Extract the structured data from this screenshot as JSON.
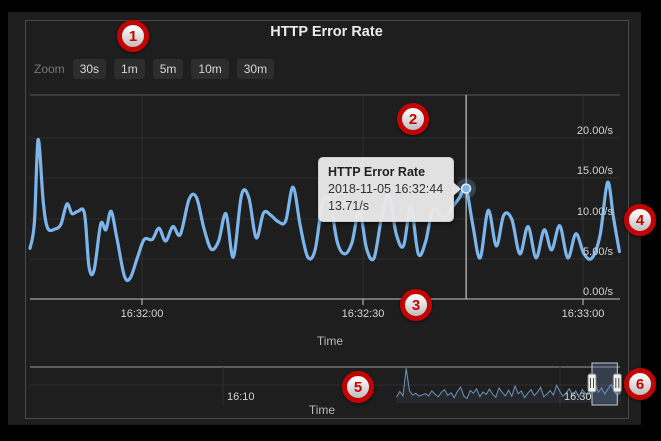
{
  "header": {
    "title": "HTTP Error Rate"
  },
  "zoom_bar": {
    "label": "Zoom",
    "buttons": [
      "30s",
      "1m",
      "5m",
      "10m",
      "30m"
    ]
  },
  "tooltip": {
    "title": "HTTP Error Rate",
    "timestamp": "2018-11-05 16:32:44",
    "value": "13.71/s"
  },
  "callouts": [
    "1",
    "2",
    "3",
    "4",
    "5",
    "6"
  ],
  "colors": {
    "series": "#7cb5ec",
    "navigator_series": "#6f93bd",
    "callout_ring": "#c40404",
    "tooltip_bg": "#e9e9e9",
    "panel_border": "#4a4a4a"
  },
  "chart_data": [
    {
      "type": "line",
      "title": "HTTP Error Rate",
      "xlabel": "Time",
      "ylabel": "",
      "x_tick_labels": [
        "16:32:00",
        "16:32:30",
        "16:33:00"
      ],
      "y_tick_labels": [
        "20.00/s",
        "15.00/s",
        "10.00/s",
        "5.00/s",
        "0.00/s"
      ],
      "ylim": [
        0,
        25
      ],
      "x_unit": "seconds after 16:32:00",
      "grid": true,
      "points": [
        [
          -15.2,
          6.3
        ],
        [
          -14.6,
          9.5
        ],
        [
          -14.1,
          19.8
        ],
        [
          -13.4,
          12.0
        ],
        [
          -12.8,
          8.8
        ],
        [
          -11.8,
          8.7
        ],
        [
          -11.0,
          9.3
        ],
        [
          -10.2,
          11.8
        ],
        [
          -9.5,
          10.6
        ],
        [
          -8.7,
          10.9
        ],
        [
          -7.8,
          10.6
        ],
        [
          -7.2,
          4.0
        ],
        [
          -6.5,
          3.6
        ],
        [
          -5.6,
          9.3
        ],
        [
          -4.9,
          8.6
        ],
        [
          -4.2,
          10.9
        ],
        [
          -3.4,
          7.5
        ],
        [
          -2.4,
          2.9
        ],
        [
          -1.6,
          2.6
        ],
        [
          -0.6,
          5.2
        ],
        [
          0.3,
          7.4
        ],
        [
          1.4,
          7.4
        ],
        [
          2.3,
          8.8
        ],
        [
          3.2,
          7.2
        ],
        [
          4.2,
          9.0
        ],
        [
          5.2,
          8.0
        ],
        [
          6.4,
          12.4
        ],
        [
          7.4,
          12.6
        ],
        [
          8.4,
          8.8
        ],
        [
          9.4,
          6.2
        ],
        [
          10.4,
          7.2
        ],
        [
          11.4,
          10.6
        ],
        [
          12.4,
          5.2
        ],
        [
          13.5,
          12.9
        ],
        [
          14.5,
          12.6
        ],
        [
          15.5,
          7.6
        ],
        [
          16.5,
          10.7
        ],
        [
          17.5,
          10.4
        ],
        [
          18.5,
          9.6
        ],
        [
          19.5,
          9.7
        ],
        [
          20.5,
          13.9
        ],
        [
          21.5,
          9.0
        ],
        [
          22.5,
          5.2
        ],
        [
          23.5,
          6.1
        ],
        [
          24.5,
          11.9
        ],
        [
          25.5,
          12.1
        ],
        [
          26.5,
          7.1
        ],
        [
          27.5,
          5.6
        ],
        [
          28.5,
          7.0
        ],
        [
          29.5,
          11.0
        ],
        [
          30.5,
          6.2
        ],
        [
          31.5,
          5.1
        ],
        [
          32.5,
          10.0
        ],
        [
          33.5,
          12.9
        ],
        [
          34.5,
          8.1
        ],
        [
          35.5,
          6.6
        ],
        [
          36.5,
          11.4
        ],
        [
          37.5,
          5.6
        ],
        [
          38.5,
          7.1
        ],
        [
          39.5,
          11.1
        ],
        [
          41.0,
          10.1
        ],
        [
          42.2,
          11.5
        ],
        [
          43.1,
          12.6
        ],
        [
          44.0,
          13.71
        ],
        [
          44.9,
          9.2
        ],
        [
          45.9,
          5.1
        ],
        [
          47.0,
          11.0
        ],
        [
          48.1,
          6.6
        ],
        [
          49.1,
          10.4
        ],
        [
          50.2,
          9.9
        ],
        [
          51.3,
          5.6
        ],
        [
          52.4,
          9.0
        ],
        [
          53.5,
          5.1
        ],
        [
          54.6,
          8.6
        ],
        [
          55.6,
          6.1
        ],
        [
          56.7,
          9.1
        ],
        [
          57.8,
          5.1
        ],
        [
          58.9,
          8.1
        ],
        [
          60.0,
          5.6
        ],
        [
          61.1,
          5.1
        ],
        [
          62.2,
          8.0
        ],
        [
          63.2,
          14.5
        ],
        [
          64.0,
          10.1
        ],
        [
          64.8,
          5.9
        ]
      ],
      "highlight": {
        "x": 44.0,
        "y": 13.71
      }
    },
    {
      "type": "line",
      "role": "navigator",
      "xlabel": "Time",
      "x_tick_labels": [
        "16:10",
        "16:30"
      ],
      "x_unit": "minutes after 16:00",
      "start_minute": 20.3,
      "step_minute": 0.19,
      "values": [
        3.2,
        6.5,
        4.0,
        19.5,
        7.0,
        4.5,
        5.5,
        3.8,
        4.6,
        5.2,
        4.0,
        6.8,
        5.0,
        3.5,
        6.0,
        7.5,
        4.2,
        5.8,
        3.0,
        6.5,
        9.0,
        4.0,
        2.5,
        7.0,
        5.5,
        8.0,
        3.5,
        6.2,
        4.8,
        7.8,
        5.0,
        3.2,
        8.5,
        6.0,
        4.0,
        7.2,
        3.8,
        9.5,
        5.2,
        6.8,
        3.0,
        5.5,
        7.5,
        4.2,
        6.0,
        8.8,
        3.5,
        5.0,
        7.0,
        4.5,
        10.0,
        6.5,
        3.8,
        5.8,
        8.0,
        4.0,
        6.8,
        3.2,
        7.5,
        5.5,
        4.8,
        9.0,
        12.0,
        6.0,
        8.5,
        5.0,
        7.8,
        10.5,
        6.2,
        4.5,
        6.0
      ],
      "selection_minutes": [
        31.9,
        33.4
      ]
    }
  ]
}
